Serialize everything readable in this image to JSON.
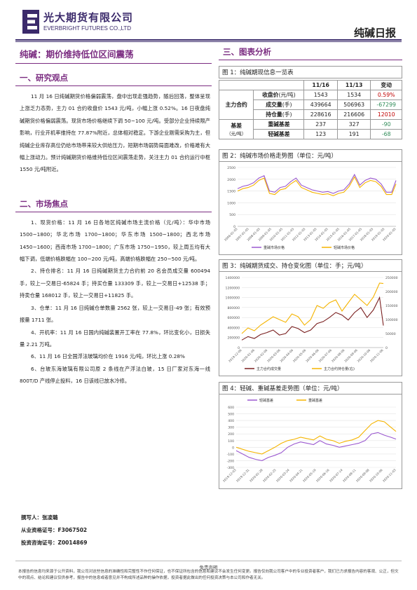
{
  "header": {
    "logo_cn": "光大期货有限公司",
    "logo_en": "EVERBRIGHT FUTURES CO.,LTD",
    "report_type": "纯碱日报"
  },
  "left": {
    "main_title": "纯碱：期价维持低位区间震荡",
    "section1_title": "一、研究观点",
    "section1_text": "11 月 16 日纯碱期货价格偏弱震荡，盘中出现走强趋势，随后回落，整体呈现上涨乏力态势，主力 01 合约收盘价 1543 元/吨，小幅上涨 0.52%。16 日夜盘纯碱期货价格偏弱震荡。现货市场价格继续下调 50~100 元/吨。受部分企业持续限产影响，行业开机率维持在 77.87%附近，总体相对稳定。下游企业刚需采购为主，但纯碱企业库存高位仍给市场带来较大供给压力，短期市场弱势局面难改，价格难有大幅上涨动力。预计纯碱期货价格维持低位区间震荡走势，关注主力 01 合约运行中枢 1550 元/吨附近。",
    "section2_title": "二、市场焦点",
    "focus": [
      "1、现货价格：11 月 16 日各地区纯碱市场主流价格（元/吨）：华中市场 1500~1800；华北市场 1700~1800；华东市场 1500~1800；西北市场 1450~1600；西南市场 1700~1800；广东市场 1750~1950，较上周五均有大幅下调，低端价格跌幅在 100~200 元/吨，高端价格跌幅在 250~500 元/吨。",
      "2、持仓排名：11 月 16 日纯碱期货主力合约前 20 名会员成交量 600494 手，较上一交易日-65824 手；持买仓量 133309 手，较上一交易日+12538 手；持卖仓量 168012 手，较上一交易日+11825 手。",
      "3、仓单：11 月 16 日纯碱仓单数量 2562 张，较上一交易日-49 张；有效预报量 1711 张。",
      "4、开机率：11 月 16 日国内纯碱装置开工率在 77.8%，环比变化小，日损失量 2.21 万吨。",
      "6、11 月 16 日全国浮法玻璃均价在 1916 元/吨，环比上涨 0.28%",
      "6、台玻东海玻璃有限公司原 2 条线在产浮法白玻，15 日厂家对东海一线 800T/D 产线停止投料，16 日该线已放水冷修。"
    ]
  },
  "right": {
    "section_title": "三、图表分析",
    "fig1_caption": "图 1：纯碱期现信息一览表",
    "table": {
      "headers": [
        "",
        "",
        "11/16",
        "11/13",
        "变动"
      ],
      "group1": "主力合约",
      "group2": "基差",
      "group2_unit": "（元/吨）",
      "rows": [
        {
          "label": "收盘价",
          "unit": "(元/吨)",
          "a": "1543",
          "b": "1534",
          "chg": "0.59%",
          "dir": "pos"
        },
        {
          "label": "成交量",
          "unit": "(手)",
          "a": "439664",
          "b": "506963",
          "chg": "-67299",
          "dir": "neg"
        },
        {
          "label": "持仓量",
          "unit": "(手)",
          "a": "228616",
          "b": "216606",
          "chg": "12010",
          "dir": "pos"
        },
        {
          "label": "重碱基差",
          "unit": "",
          "a": "237",
          "b": "327",
          "chg": "-90",
          "dir": "neg"
        },
        {
          "label": "轻碱基差",
          "unit": "",
          "a": "123",
          "b": "191",
          "chg": "-68",
          "dir": "neg"
        }
      ]
    },
    "fig2_caption": "图 2：纯碱市场价格走势图（单位：元/吨）",
    "fig3_caption": "图 3：纯碱期货成交、持仓变化图（单位：手；元/吨）",
    "fig4_caption": "图 4：轻碱、重碱基差走势图（单位：元/吨）"
  },
  "chart_data": [
    {
      "type": "line",
      "title": "",
      "ylim": [
        0,
        2500
      ],
      "y_ticks": [
        "0",
        "500",
        "1000",
        "1500",
        "2000",
        "2500"
      ],
      "x_ticks": [
        "2006-01-05",
        "2007-01-05",
        "2008-01-05",
        "2009-01-05",
        "2010-01-05",
        "2011-01-05",
        "2012-01-05",
        "2013-01-05",
        "2014-01-05",
        "2015-01-05",
        "2016-01-05",
        "2017-01-05",
        "2018-01-05",
        "2019-01-05",
        "2020-01-05"
      ],
      "x": [
        2006,
        2006.5,
        2007,
        2007.5,
        2008,
        2008.5,
        2009,
        2009.5,
        2010,
        2010.5,
        2011,
        2011.5,
        2012,
        2012.5,
        2013,
        2013.5,
        2014,
        2014.5,
        2015,
        2015.5,
        2016,
        2016.5,
        2017,
        2017.5,
        2018,
        2018.5,
        2019,
        2019.5,
        2020,
        2020.5,
        2020.9
      ],
      "series": [
        {
          "name": "重碱市场价格",
          "color": "#9b59d0",
          "values": [
            1600,
            1700,
            1750,
            1850,
            2050,
            2150,
            1500,
            1450,
            1650,
            1700,
            1900,
            2050,
            1750,
            1650,
            1550,
            1500,
            1450,
            1480,
            1400,
            1500,
            1550,
            1800,
            2200,
            1750,
            1950,
            2050,
            2000,
            1800,
            1450,
            1450,
            1950
          ]
        },
        {
          "name": "轻碱市场价格",
          "color": "#f5b400",
          "values": [
            1500,
            1600,
            1650,
            1750,
            1950,
            2050,
            1400,
            1350,
            1550,
            1600,
            1800,
            1950,
            1650,
            1550,
            1450,
            1400,
            1350,
            1380,
            1300,
            1400,
            1450,
            1700,
            2100,
            1650,
            1850,
            1950,
            1900,
            1700,
            1350,
            1350,
            1800
          ]
        }
      ]
    },
    {
      "type": "line",
      "title": "",
      "ylim": [
        0,
        1400000
      ],
      "y2lim": [
        0,
        250000
      ],
      "y_ticks": [
        "0",
        "200000",
        "400000",
        "600000",
        "800000",
        "1000000",
        "1200000",
        "1400000"
      ],
      "y2_ticks": [
        "0",
        "50000",
        "100000",
        "150000",
        "200000",
        "250000"
      ],
      "x_ticks": [
        "2019-12-06",
        "2020-01-06",
        "2020-02-06",
        "2020-03-06",
        "2020-04-06",
        "2020-05-06",
        "2020-06-06",
        "2020-07-06",
        "2020-08-06",
        "2020-09-06",
        "2020-10-06",
        "2020-11-06"
      ],
      "x": [
        0,
        0.5,
        1,
        1.5,
        2,
        2.5,
        3,
        3.5,
        4,
        4.5,
        5,
        5.5,
        6,
        6.5,
        7,
        7.5,
        8,
        8.5,
        9,
        9.5,
        10,
        10.5,
        11,
        11.3
      ],
      "series": [
        {
          "name": "主力合约成交量",
          "color": "#7a1f1f",
          "axis": "left",
          "values": [
            150000,
            220000,
            180000,
            260000,
            300000,
            350000,
            250000,
            280000,
            420000,
            380000,
            300000,
            350000,
            480000,
            520000,
            600000,
            700000,
            650000,
            550000,
            700000,
            800000,
            600000,
            750000,
            1000000,
            440000
          ]
        },
        {
          "name": "主力合约持仓量(右)",
          "color": "#f5b400",
          "axis": "right",
          "values": [
            50000,
            70000,
            60000,
            80000,
            95000,
            110000,
            100000,
            90000,
            120000,
            110000,
            80000,
            100000,
            150000,
            140000,
            160000,
            170000,
            130000,
            160000,
            190000,
            170000,
            150000,
            180000,
            230000,
            228616
          ]
        }
      ]
    },
    {
      "type": "line",
      "title": "",
      "ylim": [
        -300,
        600
      ],
      "y_ticks": [
        "-300",
        "-200",
        "-100",
        "0",
        "100",
        "200",
        "300",
        "400",
        "500",
        "600"
      ],
      "x_ticks": [
        "2019-12-03",
        "2019-12-31",
        "2020-01-28",
        "2020-02-25",
        "2020-03-24",
        "2020-04-21",
        "2020-05-19",
        "2020-06-16",
        "2020-07-14",
        "2020-08-11",
        "2020-09-08",
        "2020-10-06",
        "2020-11-03"
      ],
      "x": [
        0,
        0.5,
        1,
        1.5,
        2,
        2.5,
        3,
        3.5,
        4,
        4.5,
        5,
        5.5,
        6,
        6.5,
        7,
        7.5,
        8,
        8.5,
        9,
        9.5,
        10,
        10.5,
        11,
        11.5,
        12,
        12.4
      ],
      "series": [
        {
          "name": "轻碱基差",
          "color": "#9b59d0",
          "values": [
            -50,
            -100,
            -150,
            -180,
            -200,
            -150,
            -120,
            -80,
            0,
            50,
            80,
            60,
            40,
            100,
            50,
            30,
            0,
            20,
            40,
            60,
            100,
            200,
            220,
            180,
            150,
            123
          ]
        },
        {
          "name": "重碱基差",
          "color": "#f5b400",
          "values": [
            0,
            -30,
            -60,
            -80,
            -100,
            -50,
            0,
            60,
            100,
            120,
            150,
            130,
            110,
            170,
            120,
            100,
            60,
            90,
            110,
            150,
            250,
            350,
            400,
            380,
            300,
            237
          ]
        }
      ]
    }
  ],
  "authors": {
    "writer": "撰写人：张凌璐",
    "qualification": "从业资格证号：F3067502",
    "consult": "投资咨询证号：Z0014869"
  },
  "disclaimer": {
    "title": "免责声明",
    "text": "本报告的信息均来源于公开资料，我公司对这些信息的准确性和完整性不作任何保证，也不保证所包含的信息和建议不会发生任何变更。报告仅向我公司客户中的专业投资者客户，我们已力求报告内容的客观、公正，但文中的观点、结论和建议仅供参考，报告中的信息或者意见并不构成所述品种的操作依据，投资者据此做出的任何投资决策与本公司和作者无关。"
  }
}
